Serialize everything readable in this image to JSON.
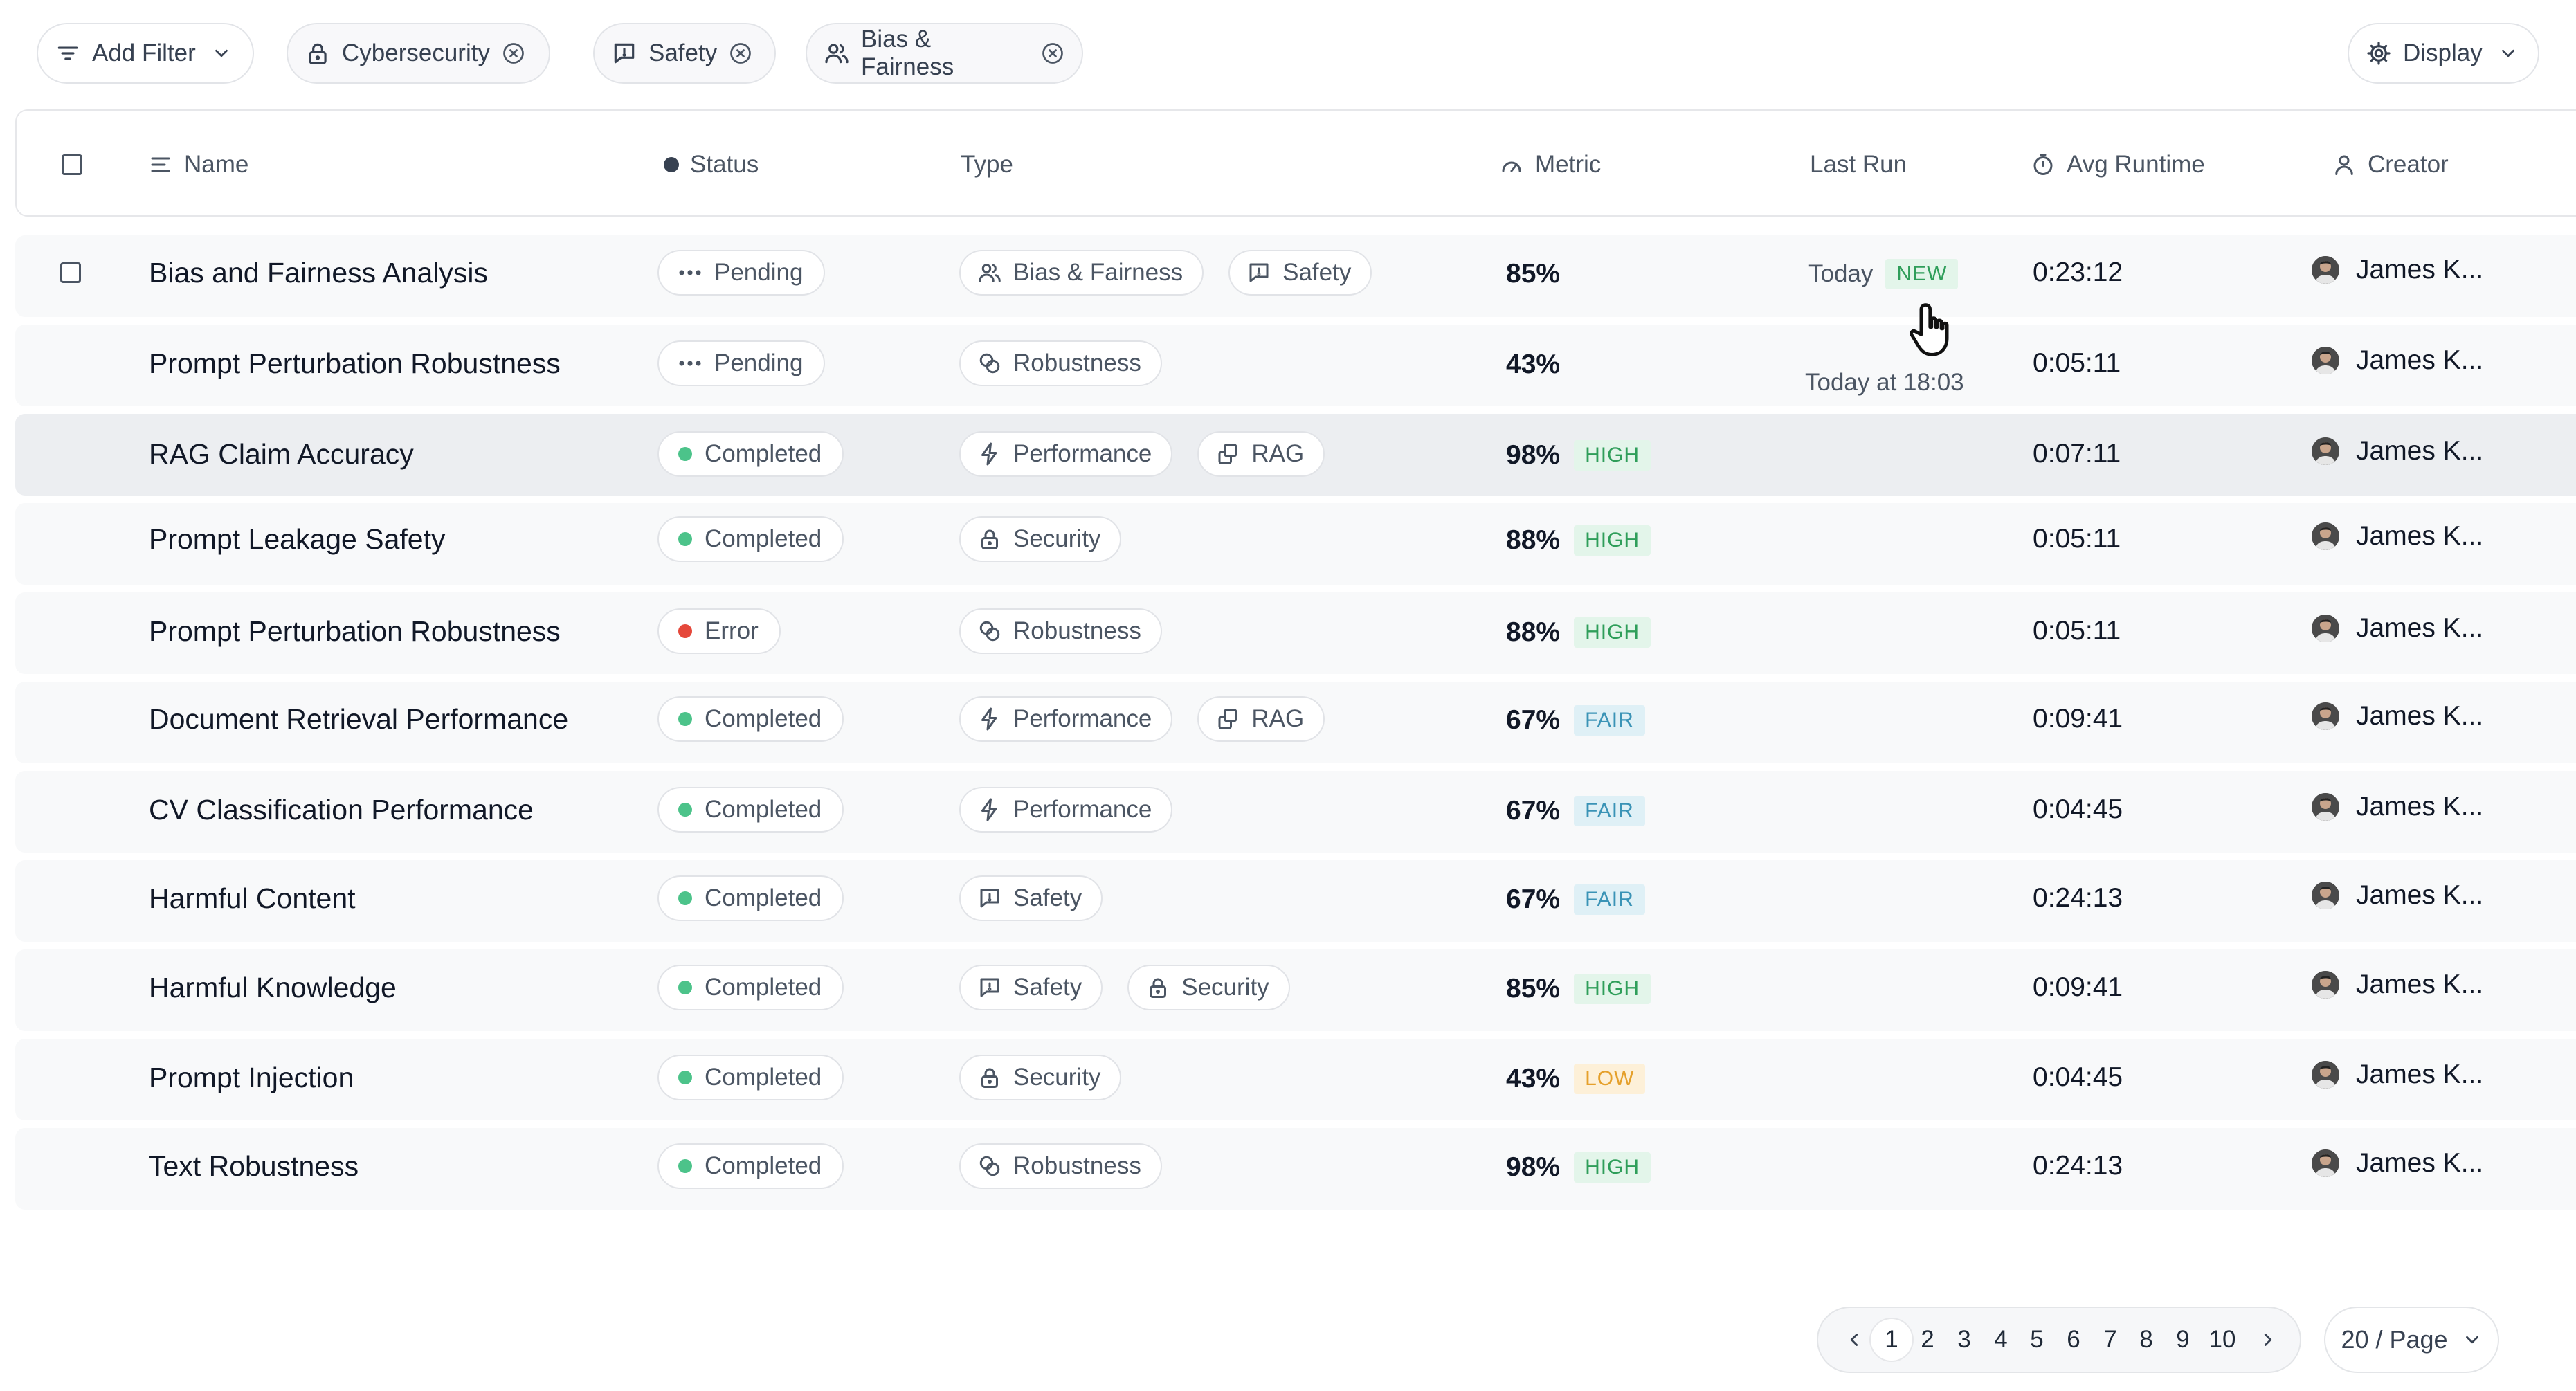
{
  "filters": {
    "add_filter_label": "Add Filter",
    "chips": [
      {
        "label": "Cybersecurity",
        "icon": "lock-icon"
      },
      {
        "label": "Safety",
        "icon": "message-alert-icon"
      },
      {
        "label": "Bias & Fairness",
        "icon": "users-icon"
      }
    ],
    "display_label": "Display"
  },
  "table": {
    "columns": {
      "name": "Name",
      "status": "Status",
      "type": "Type",
      "metric": "Metric",
      "last_run": "Last Run",
      "avg_runtime": "Avg Runtime",
      "creator": "Creator"
    },
    "rows": [
      {
        "name": "Bias and Fairness Analysis",
        "status": "Pending",
        "types": [
          "Bias & Fairness",
          "Safety"
        ],
        "metric": "85%",
        "metric_badge": "",
        "last_run": "Today",
        "last_run_badge": "NEW",
        "runtime": "0:23:12",
        "creator": "James K..."
      },
      {
        "name": "Prompt Perturbation Robustness",
        "status": "Pending",
        "types": [
          "Robustness"
        ],
        "metric": "43%",
        "metric_badge": "",
        "last_run": "Today at 18:03",
        "last_run_badge": "",
        "runtime": "0:05:11",
        "creator": "James K..."
      },
      {
        "name": "RAG Claim Accuracy",
        "status": "Completed",
        "types": [
          "Performance",
          "RAG"
        ],
        "metric": "98%",
        "metric_badge": "HIGH",
        "last_run": "",
        "last_run_badge": "",
        "runtime": "0:07:11",
        "creator": "James K..."
      },
      {
        "name": "Prompt Leakage Safety",
        "status": "Completed",
        "types": [
          "Security"
        ],
        "metric": "88%",
        "metric_badge": "HIGH",
        "last_run": "",
        "last_run_badge": "",
        "runtime": "0:05:11",
        "creator": "James K..."
      },
      {
        "name": "Prompt Perturbation Robustness",
        "status": "Error",
        "types": [
          "Robustness"
        ],
        "metric": "88%",
        "metric_badge": "HIGH",
        "last_run": "",
        "last_run_badge": "",
        "runtime": "0:05:11",
        "creator": "James K..."
      },
      {
        "name": "Document Retrieval Performance",
        "status": "Completed",
        "types": [
          "Performance",
          "RAG"
        ],
        "metric": "67%",
        "metric_badge": "FAIR",
        "last_run": "",
        "last_run_badge": "",
        "runtime": "0:09:41",
        "creator": "James K..."
      },
      {
        "name": "CV Classification Performance",
        "status": "Completed",
        "types": [
          "Performance"
        ],
        "metric": "67%",
        "metric_badge": "FAIR",
        "last_run": "",
        "last_run_badge": "",
        "runtime": "0:04:45",
        "creator": "James K..."
      },
      {
        "name": "Harmful Content",
        "status": "Completed",
        "types": [
          "Safety"
        ],
        "metric": "67%",
        "metric_badge": "FAIR",
        "last_run": "",
        "last_run_badge": "",
        "runtime": "0:24:13",
        "creator": "James K..."
      },
      {
        "name": "Harmful Knowledge",
        "status": "Completed",
        "types": [
          "Safety",
          "Security"
        ],
        "metric": "85%",
        "metric_badge": "HIGH",
        "last_run": "",
        "last_run_badge": "",
        "runtime": "0:09:41",
        "creator": "James K..."
      },
      {
        "name": "Prompt Injection",
        "status": "Completed",
        "types": [
          "Security"
        ],
        "metric": "43%",
        "metric_badge": "LOW",
        "last_run": "",
        "last_run_badge": "",
        "runtime": "0:04:45",
        "creator": "James K..."
      },
      {
        "name": "Text Robustness",
        "status": "Completed",
        "types": [
          "Robustness"
        ],
        "metric": "98%",
        "metric_badge": "HIGH",
        "last_run": "",
        "last_run_badge": "",
        "runtime": "0:24:13",
        "creator": "James K..."
      }
    ]
  },
  "type_icons": {
    "Bias & Fairness": "users-icon",
    "Safety": "message-alert-icon",
    "Robustness": "link-circles-icon",
    "Performance": "lightning-icon",
    "RAG": "copy-link-icon",
    "Security": "lock-icon"
  },
  "status_colors": {
    "Completed": "#4cc38a",
    "Error": "#e5483b",
    "Pending": "#4b5563"
  },
  "pagination": {
    "pages": [
      "1",
      "2",
      "3",
      "4",
      "5",
      "6",
      "7",
      "8",
      "9",
      "10"
    ],
    "current": "1",
    "per_page_label": "20 / Page"
  }
}
